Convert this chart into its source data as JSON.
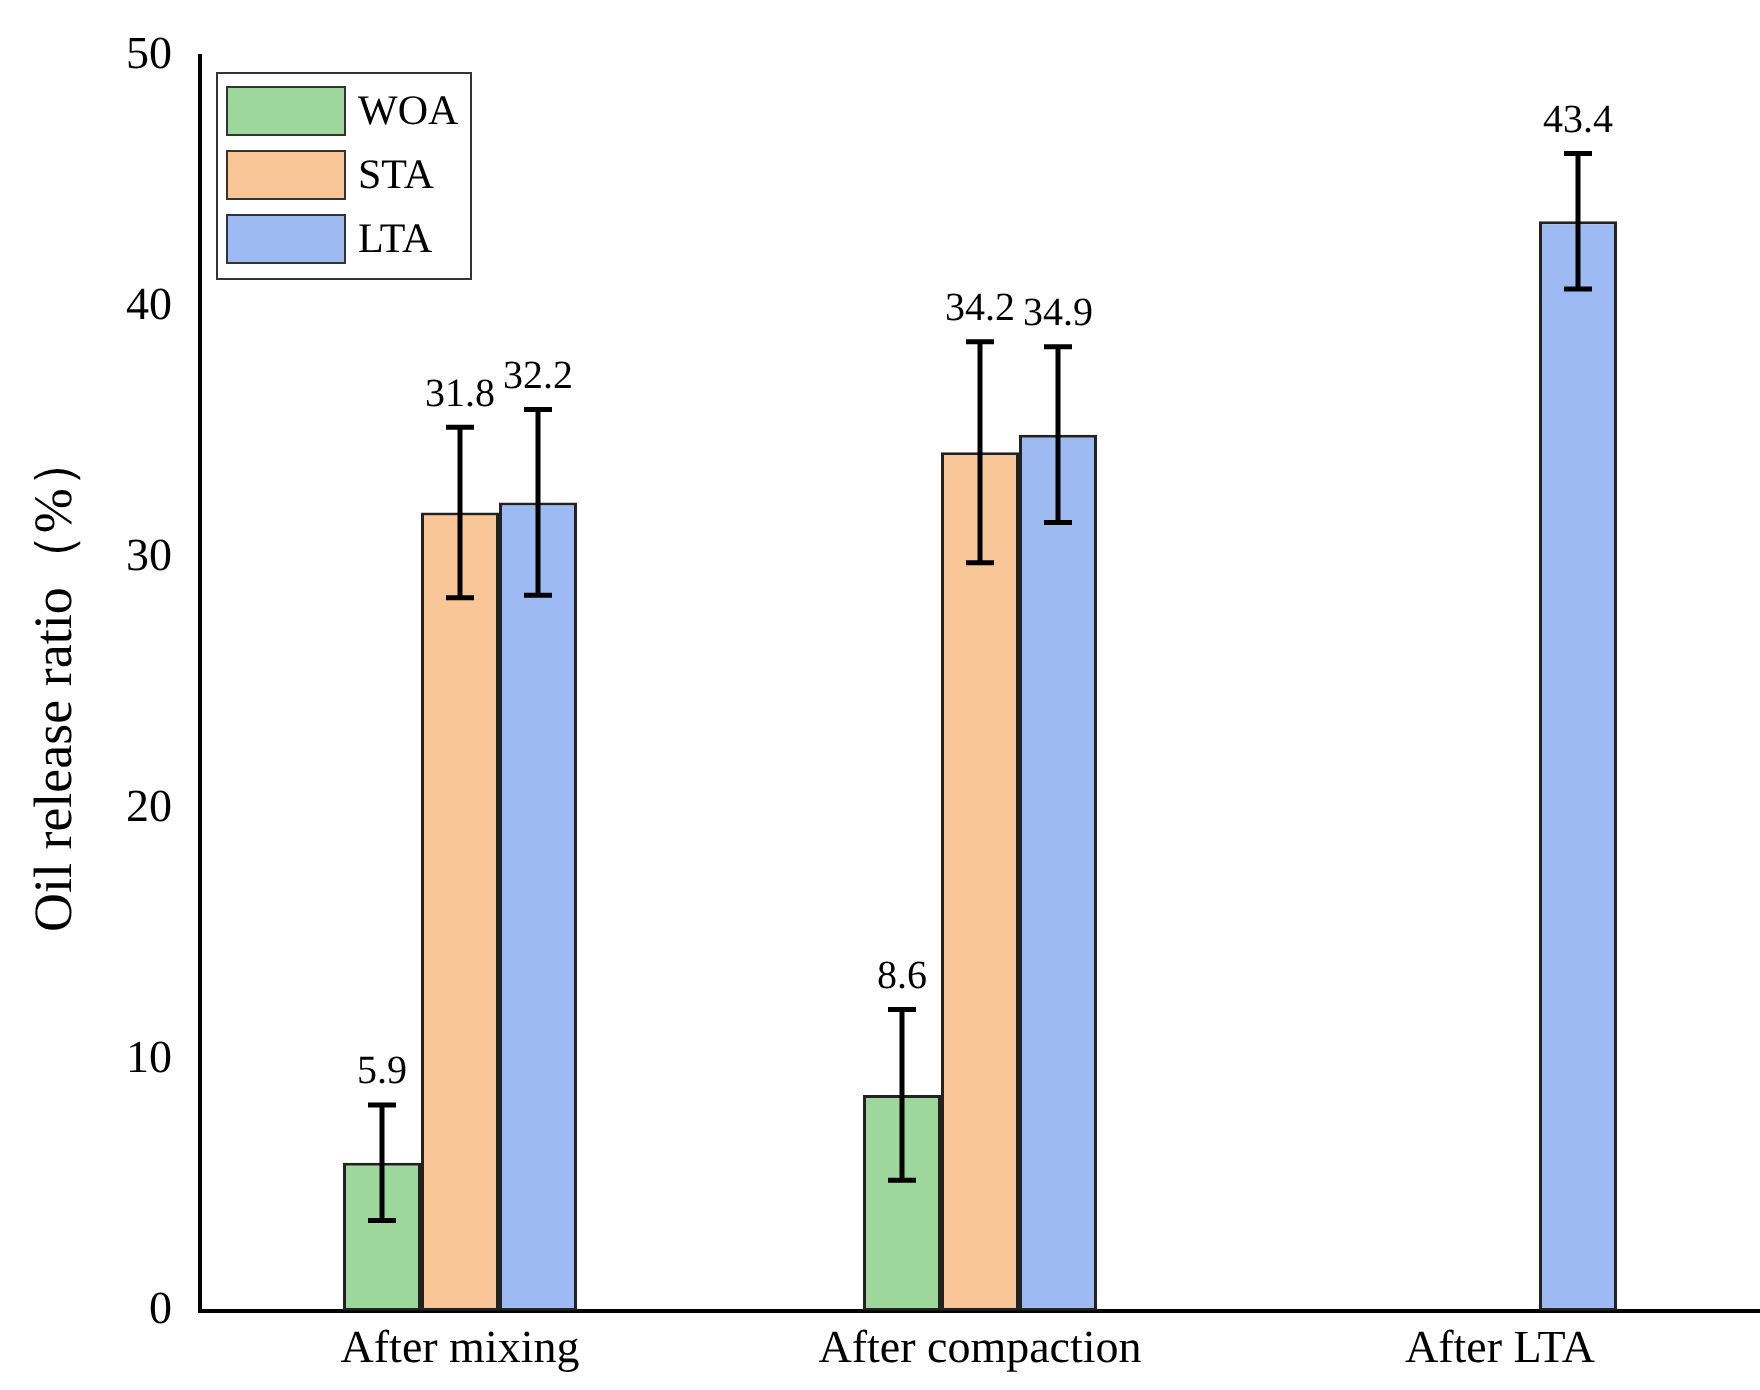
{
  "chart_data": {
    "type": "bar",
    "ylabel": "Oil release ratio（%）",
    "categories": [
      "After mixing",
      "After compaction",
      "After LTA"
    ],
    "series": [
      {
        "name": "WOA",
        "color": "#9dd79b",
        "values": [
          5.9,
          8.6,
          null
        ],
        "errors": [
          2.3,
          3.4,
          null
        ]
      },
      {
        "name": "STA",
        "color": "#f9c697",
        "values": [
          31.8,
          34.2,
          null
        ],
        "errors": [
          3.4,
          4.4,
          null
        ]
      },
      {
        "name": "LTA",
        "color": "#9dbbf2",
        "values": [
          32.2,
          34.9,
          43.4
        ],
        "errors": [
          3.7,
          3.5,
          2.7
        ]
      }
    ],
    "ylim": [
      0,
      50
    ],
    "yticks": [
      0,
      10,
      20,
      30,
      40,
      50
    ],
    "grid": false,
    "legend": "top left",
    "data_labels": true
  }
}
